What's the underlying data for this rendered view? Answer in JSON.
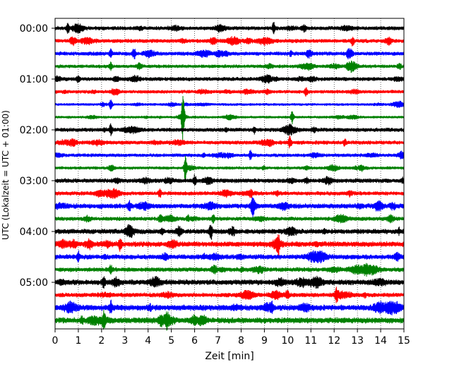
{
  "chart_data": {
    "type": "line",
    "title": "",
    "xlabel": "Zeit  [min]",
    "ylabel": "UTC (Lokalzeit = UTC + 01:00)",
    "xlim": [
      0,
      15
    ],
    "x_ticks": [
      "0",
      "1",
      "2",
      "3",
      "4",
      "5",
      "6",
      "7",
      "8",
      "9",
      "10",
      "11",
      "12",
      "13",
      "14",
      "15"
    ],
    "y_ticks": [
      "00:00",
      "01:00",
      "02:00",
      "03:00",
      "04:00",
      "05:00"
    ],
    "grid": "vertical dotted at each minute",
    "trace_colors": [
      "#000000",
      "#ff0000",
      "#0000ff",
      "#008000"
    ],
    "traces": [
      {
        "start": "00:00",
        "color": "#000000",
        "amplitude": 0.18,
        "events": [
          {
            "x": 0.55,
            "amp": 0.35
          },
          {
            "x": 9.4,
            "amp": 0.4
          }
        ]
      },
      {
        "start": "00:15",
        "color": "#ff0000",
        "amplitude": 0.18,
        "events": [
          {
            "x": 12.8,
            "amp": 0.35
          }
        ]
      },
      {
        "start": "00:30",
        "color": "#0000ff",
        "amplitude": 0.18,
        "events": [
          {
            "x": 3.4,
            "amp": 0.4
          },
          {
            "x": 2.4,
            "amp": 0.3
          }
        ]
      },
      {
        "start": "00:45",
        "color": "#008000",
        "amplitude": 0.16,
        "events": [
          {
            "x": 2.4,
            "amp": 0.3
          }
        ]
      },
      {
        "start": "01:00",
        "color": "#000000",
        "amplitude": 0.18,
        "events": [
          {
            "x": 1.0,
            "amp": 0.3
          }
        ]
      },
      {
        "start": "01:15",
        "color": "#ff0000",
        "amplitude": 0.16,
        "events": [
          {
            "x": 10.8,
            "amp": 0.3
          }
        ]
      },
      {
        "start": "01:30",
        "color": "#0000ff",
        "amplitude": 0.12,
        "events": [
          {
            "x": 2.4,
            "amp": 0.4
          }
        ]
      },
      {
        "start": "01:45",
        "color": "#008000",
        "amplitude": 0.12,
        "events": [
          {
            "x": 5.5,
            "amp": 1.8
          },
          {
            "x": 10.2,
            "amp": 0.5
          }
        ]
      },
      {
        "start": "02:00",
        "color": "#000000",
        "amplitude": 0.18,
        "events": [
          {
            "x": 2.4,
            "amp": 0.4
          }
        ]
      },
      {
        "start": "02:15",
        "color": "#ff0000",
        "amplitude": 0.18,
        "events": [
          {
            "x": 10.1,
            "amp": 0.4
          }
        ]
      },
      {
        "start": "02:30",
        "color": "#0000ff",
        "amplitude": 0.16,
        "events": [
          {
            "x": 8.4,
            "amp": 0.35
          }
        ]
      },
      {
        "start": "02:45",
        "color": "#008000",
        "amplitude": 0.14,
        "events": [
          {
            "x": 5.6,
            "amp": 0.9
          }
        ]
      },
      {
        "start": "03:00",
        "color": "#000000",
        "amplitude": 0.2,
        "events": [
          {
            "x": 6.0,
            "amp": 0.35
          }
        ]
      },
      {
        "start": "03:15",
        "color": "#ff0000",
        "amplitude": 0.18,
        "events": [
          {
            "x": 4.5,
            "amp": 0.3
          }
        ]
      },
      {
        "start": "03:30",
        "color": "#0000ff",
        "amplitude": 0.22,
        "events": [
          {
            "x": 8.5,
            "amp": 0.45
          },
          {
            "x": 3.2,
            "amp": 0.35
          }
        ]
      },
      {
        "start": "03:45",
        "color": "#008000",
        "amplitude": 0.18,
        "events": [
          {
            "x": 6.8,
            "amp": 0.3
          }
        ]
      },
      {
        "start": "04:00",
        "color": "#000000",
        "amplitude": 0.22,
        "events": [
          {
            "x": 6.7,
            "amp": 0.6
          }
        ]
      },
      {
        "start": "04:15",
        "color": "#ff0000",
        "amplitude": 0.24,
        "events": [
          {
            "x": 2.8,
            "amp": 0.5
          },
          {
            "x": 9.6,
            "amp": 0.5
          }
        ]
      },
      {
        "start": "04:30",
        "color": "#0000ff",
        "amplitude": 0.22,
        "events": [
          {
            "x": 1.0,
            "amp": 0.35
          }
        ]
      },
      {
        "start": "04:45",
        "color": "#008000",
        "amplitude": 0.2,
        "events": [
          {
            "x": 2.4,
            "amp": 0.35
          }
        ]
      },
      {
        "start": "05:00",
        "color": "#000000",
        "amplitude": 0.24,
        "events": [
          {
            "x": 2.1,
            "amp": 0.45
          }
        ]
      },
      {
        "start": "05:15",
        "color": "#ff0000",
        "amplitude": 0.2,
        "events": [
          {
            "x": 12.1,
            "amp": 0.5
          }
        ]
      },
      {
        "start": "05:30",
        "color": "#0000ff",
        "amplitude": 0.26,
        "events": [
          {
            "x": 2.4,
            "amp": 0.45
          },
          {
            "x": 9.3,
            "amp": 0.45
          }
        ]
      },
      {
        "start": "05:45",
        "color": "#008000",
        "amplitude": 0.26,
        "events": [
          {
            "x": 2.1,
            "amp": 0.55
          },
          {
            "x": 4.8,
            "amp": 0.4
          }
        ]
      }
    ]
  }
}
